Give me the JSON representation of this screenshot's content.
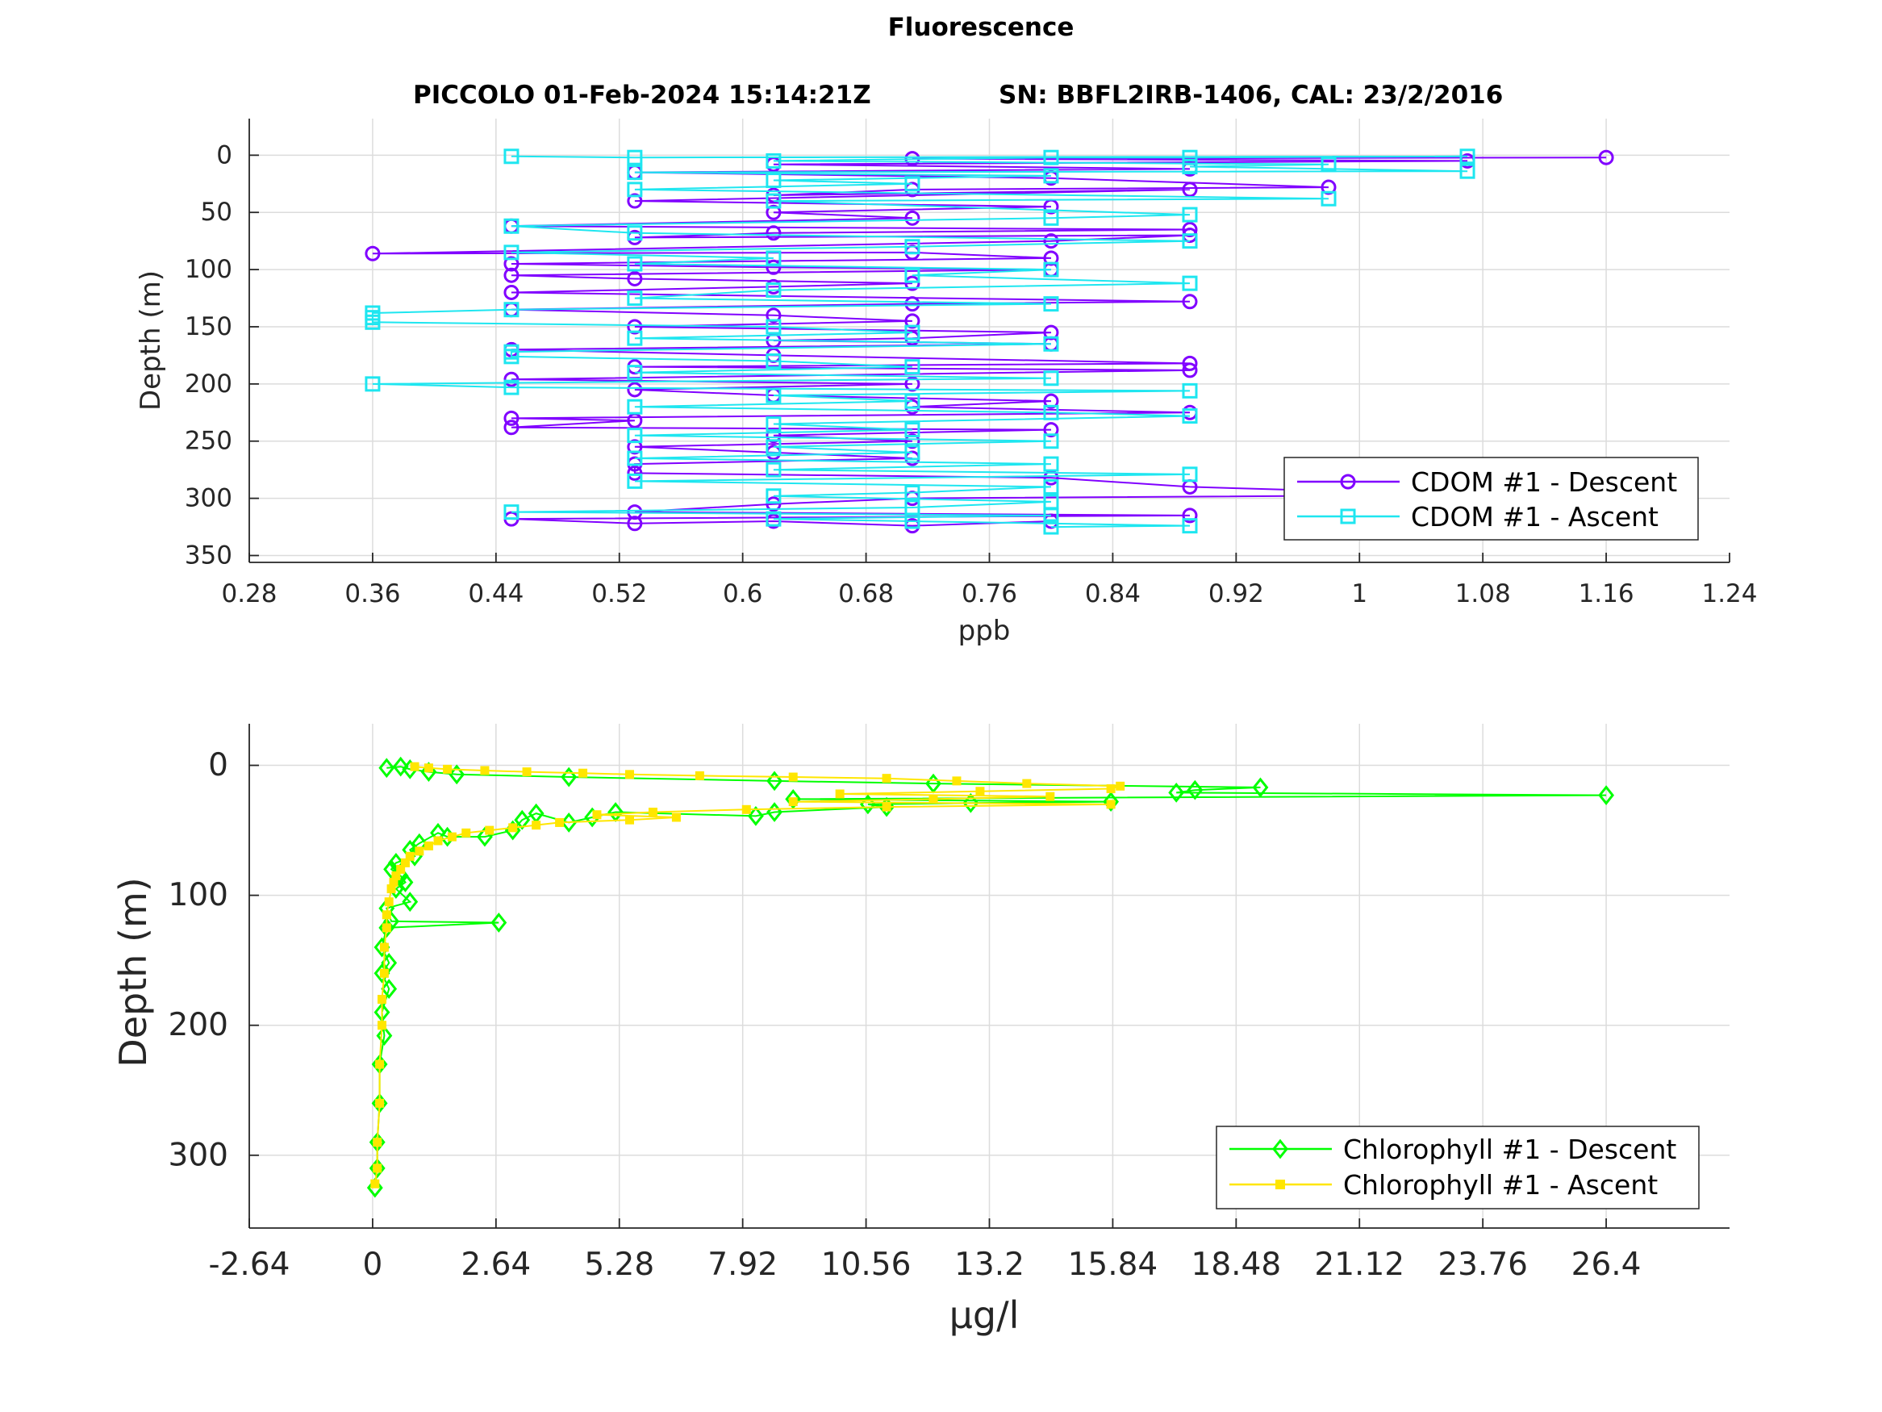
{
  "figure": {
    "suptitle": "Fluorescence",
    "title_left": "PICCOLO 01-Feb-2024 15:14:21Z",
    "title_right": "SN: BBFL2IRB-1406, CAL: 23/2/2016"
  },
  "colors": {
    "cdom_descent": "#8000ff",
    "cdom_ascent": "#1ee6f0",
    "chl_descent": "#00ff00",
    "chl_ascent": "#ffe600"
  },
  "chart_data": [
    {
      "type": "line",
      "xlabel": "ppb",
      "ylabel": "Depth (m)",
      "xlim": [
        0.28,
        1.24
      ],
      "ylim": [
        -32,
        356
      ],
      "y_reversed": true,
      "grid": true,
      "legend_placement": "bottom-right",
      "xticks": [
        "0.28",
        "0.36",
        "0.44",
        "0.52",
        "0.6",
        "0.68",
        "0.76",
        "0.84",
        "0.92",
        "1",
        "1.08",
        "1.16",
        "1.24"
      ],
      "yticks": [
        "0",
        "50",
        "100",
        "150",
        "200",
        "250",
        "300",
        "350"
      ],
      "series": [
        {
          "name": "CDOM #1 - Descent",
          "marker": "circle",
          "points": [
            [
              1.16,
              2
            ],
            [
              0.71,
              3
            ],
            [
              1.07,
              5
            ],
            [
              0.62,
              8
            ],
            [
              0.89,
              12
            ],
            [
              0.53,
              15
            ],
            [
              0.8,
              20
            ],
            [
              0.98,
              28
            ],
            [
              0.71,
              30
            ],
            [
              0.62,
              35
            ],
            [
              0.89,
              30
            ],
            [
              0.53,
              40
            ],
            [
              0.8,
              45
            ],
            [
              0.62,
              50
            ],
            [
              0.71,
              55
            ],
            [
              0.45,
              62
            ],
            [
              0.89,
              65
            ],
            [
              0.62,
              68
            ],
            [
              0.53,
              72
            ],
            [
              0.89,
              70
            ],
            [
              0.8,
              75
            ],
            [
              0.36,
              86
            ],
            [
              0.71,
              85
            ],
            [
              0.8,
              90
            ],
            [
              0.45,
              95
            ],
            [
              0.62,
              98
            ],
            [
              0.8,
              100
            ],
            [
              0.45,
              105
            ],
            [
              0.53,
              108
            ],
            [
              0.71,
              112
            ],
            [
              0.62,
              115
            ],
            [
              0.45,
              120
            ],
            [
              0.89,
              128
            ],
            [
              0.71,
              130
            ],
            [
              0.45,
              135
            ],
            [
              0.62,
              140
            ],
            [
              0.71,
              145
            ],
            [
              0.53,
              150
            ],
            [
              0.8,
              155
            ],
            [
              0.71,
              160
            ],
            [
              0.62,
              162
            ],
            [
              0.8,
              165
            ],
            [
              0.45,
              170
            ],
            [
              0.62,
              175
            ],
            [
              0.89,
              182
            ],
            [
              0.53,
              185
            ],
            [
              0.89,
              188
            ],
            [
              0.45,
              196
            ],
            [
              0.71,
              200
            ],
            [
              0.53,
              205
            ],
            [
              0.62,
              210
            ],
            [
              0.8,
              215
            ],
            [
              0.71,
              220
            ],
            [
              0.89,
              225
            ],
            [
              0.45,
              230
            ],
            [
              0.53,
              232
            ],
            [
              0.45,
              238
            ],
            [
              0.8,
              240
            ],
            [
              0.62,
              245
            ],
            [
              0.71,
              250
            ],
            [
              0.53,
              255
            ],
            [
              0.62,
              260
            ],
            [
              0.71,
              265
            ],
            [
              0.53,
              270
            ],
            [
              0.53,
              278
            ],
            [
              0.8,
              282
            ],
            [
              0.89,
              290
            ],
            [
              1.07,
              297
            ],
            [
              0.71,
              300
            ],
            [
              0.62,
              305
            ],
            [
              0.53,
              312
            ],
            [
              0.89,
              315
            ],
            [
              0.45,
              318
            ],
            [
              0.53,
              322
            ],
            [
              0.62,
              320
            ],
            [
              0.71,
              324
            ],
            [
              0.8,
              320
            ]
          ]
        },
        {
          "name": "CDOM #1 - Ascent",
          "marker": "square",
          "points": [
            [
              0.45,
              1
            ],
            [
              0.53,
              2
            ],
            [
              1.07,
              1
            ],
            [
              0.89,
              2
            ],
            [
              0.8,
              2
            ],
            [
              0.62,
              5
            ],
            [
              0.98,
              8
            ],
            [
              0.89,
              10
            ],
            [
              1.07,
              14
            ],
            [
              0.53,
              15
            ],
            [
              0.8,
              18
            ],
            [
              0.62,
              22
            ],
            [
              0.71,
              25
            ],
            [
              0.53,
              30
            ],
            [
              0.98,
              38
            ],
            [
              0.62,
              40
            ],
            [
              0.89,
              52
            ],
            [
              0.8,
              55
            ],
            [
              0.45,
              62
            ],
            [
              0.53,
              68
            ],
            [
              0.89,
              75
            ],
            [
              0.71,
              80
            ],
            [
              0.45,
              85
            ],
            [
              0.62,
              90
            ],
            [
              0.53,
              95
            ],
            [
              0.8,
              100
            ],
            [
              0.71,
              105
            ],
            [
              0.89,
              112
            ],
            [
              0.62,
              118
            ],
            [
              0.53,
              125
            ],
            [
              0.8,
              130
            ],
            [
              0.45,
              135
            ],
            [
              0.36,
              138
            ],
            [
              0.36,
              142
            ],
            [
              0.36,
              146
            ],
            [
              0.62,
              150
            ],
            [
              0.71,
              155
            ],
            [
              0.53,
              160
            ],
            [
              0.8,
              165
            ],
            [
              0.45,
              172
            ],
            [
              0.45,
              176
            ],
            [
              0.62,
              180
            ],
            [
              0.71,
              185
            ],
            [
              0.53,
              190
            ],
            [
              0.8,
              195
            ],
            [
              0.36,
              200
            ],
            [
              0.45,
              203
            ],
            [
              0.89,
              206
            ],
            [
              0.62,
              210
            ],
            [
              0.71,
              215
            ],
            [
              0.53,
              220
            ],
            [
              0.8,
              225
            ],
            [
              0.89,
              228
            ],
            [
              0.62,
              235
            ],
            [
              0.71,
              240
            ],
            [
              0.53,
              245
            ],
            [
              0.8,
              250
            ],
            [
              0.62,
              255
            ],
            [
              0.71,
              260
            ],
            [
              0.53,
              265
            ],
            [
              0.8,
              270
            ],
            [
              0.62,
              275
            ],
            [
              0.89,
              279
            ],
            [
              0.53,
              285
            ],
            [
              0.8,
              290
            ],
            [
              0.71,
              295
            ],
            [
              0.62,
              298
            ],
            [
              0.8,
              303
            ],
            [
              0.71,
              308
            ],
            [
              0.45,
              312
            ],
            [
              0.8,
              315
            ],
            [
              0.62,
              318
            ],
            [
              0.71,
              320
            ],
            [
              0.89,
              324
            ],
            [
              0.8,
              325
            ]
          ]
        }
      ]
    },
    {
      "type": "line",
      "xlabel": "μg/l",
      "ylabel": "Depth (m)",
      "xlim": [
        -2.64,
        29.04
      ],
      "ylim": [
        -32,
        356
      ],
      "y_reversed": true,
      "grid": true,
      "legend_placement": "bottom-right",
      "xticks": [
        "-2.64",
        "0",
        "2.64",
        "5.28",
        "7.92",
        "10.56",
        "13.2",
        "15.84",
        "18.48",
        "21.12",
        "23.76",
        "26.4"
      ],
      "yticks": [
        "0",
        "100",
        "200",
        "300"
      ],
      "series": [
        {
          "name": "Chlorophyll #1 - Descent",
          "marker": "diamond",
          "points": [
            [
              0.3,
              2
            ],
            [
              0.6,
              1
            ],
            [
              0.8,
              3
            ],
            [
              1.2,
              5
            ],
            [
              1.8,
              7
            ],
            [
              4.2,
              9
            ],
            [
              8.6,
              12
            ],
            [
              12.0,
              14
            ],
            [
              19.0,
              17
            ],
            [
              17.6,
              19
            ],
            [
              17.2,
              21
            ],
            [
              26.4,
              23
            ],
            [
              9.0,
              26
            ],
            [
              15.8,
              28
            ],
            [
              12.8,
              29
            ],
            [
              10.6,
              30
            ],
            [
              11.0,
              32
            ],
            [
              8.6,
              36
            ],
            [
              8.2,
              39
            ],
            [
              5.2,
              36
            ],
            [
              4.7,
              40
            ],
            [
              4.2,
              44
            ],
            [
              3.5,
              37
            ],
            [
              3.2,
              42
            ],
            [
              3.0,
              50
            ],
            [
              2.4,
              55
            ],
            [
              1.6,
              55
            ],
            [
              1.4,
              52
            ],
            [
              1.0,
              60
            ],
            [
              0.8,
              65
            ],
            [
              0.9,
              70
            ],
            [
              0.5,
              75
            ],
            [
              0.4,
              80
            ],
            [
              0.6,
              85
            ],
            [
              0.7,
              90
            ],
            [
              0.5,
              95
            ],
            [
              0.8,
              105
            ],
            [
              0.3,
              110
            ],
            [
              0.4,
              120
            ],
            [
              2.7,
              121
            ],
            [
              0.3,
              125
            ],
            [
              0.2,
              140
            ],
            [
              0.35,
              152
            ],
            [
              0.2,
              160
            ],
            [
              0.35,
              172
            ],
            [
              0.2,
              190
            ],
            [
              0.25,
              208
            ],
            [
              0.15,
              230
            ],
            [
              0.15,
              260
            ],
            [
              0.1,
              290
            ],
            [
              0.1,
              310
            ],
            [
              0.05,
              325
            ]
          ]
        },
        {
          "name": "Chlorophyll #1 - Ascent",
          "marker": "square-filled",
          "points": [
            [
              0.9,
              1
            ],
            [
              1.2,
              2
            ],
            [
              1.6,
              3
            ],
            [
              2.4,
              4
            ],
            [
              3.3,
              5
            ],
            [
              4.5,
              6
            ],
            [
              5.5,
              7
            ],
            [
              7.0,
              8
            ],
            [
              9.0,
              9
            ],
            [
              11.0,
              10
            ],
            [
              12.5,
              12
            ],
            [
              14.0,
              14
            ],
            [
              16.0,
              16
            ],
            [
              15.8,
              18
            ],
            [
              13.0,
              20
            ],
            [
              10.0,
              22
            ],
            [
              14.5,
              24
            ],
            [
              12.0,
              26
            ],
            [
              9.0,
              28
            ],
            [
              15.8,
              30
            ],
            [
              11.0,
              32
            ],
            [
              8.0,
              34
            ],
            [
              6.0,
              36
            ],
            [
              4.8,
              38
            ],
            [
              6.5,
              40
            ],
            [
              5.5,
              42
            ],
            [
              4.0,
              44
            ],
            [
              3.5,
              46
            ],
            [
              3.0,
              48
            ],
            [
              2.5,
              50
            ],
            [
              2.0,
              52
            ],
            [
              1.7,
              55
            ],
            [
              1.4,
              58
            ],
            [
              1.2,
              62
            ],
            [
              1.0,
              66
            ],
            [
              0.8,
              70
            ],
            [
              0.7,
              75
            ],
            [
              0.6,
              80
            ],
            [
              0.5,
              85
            ],
            [
              0.45,
              90
            ],
            [
              0.4,
              95
            ],
            [
              0.35,
              105
            ],
            [
              0.3,
              115
            ],
            [
              0.3,
              125
            ],
            [
              0.25,
              140
            ],
            [
              0.25,
              160
            ],
            [
              0.2,
              180
            ],
            [
              0.2,
              200
            ],
            [
              0.15,
              230
            ],
            [
              0.15,
              260
            ],
            [
              0.1,
              290
            ],
            [
              0.1,
              310
            ],
            [
              0.05,
              322
            ]
          ]
        }
      ]
    }
  ]
}
